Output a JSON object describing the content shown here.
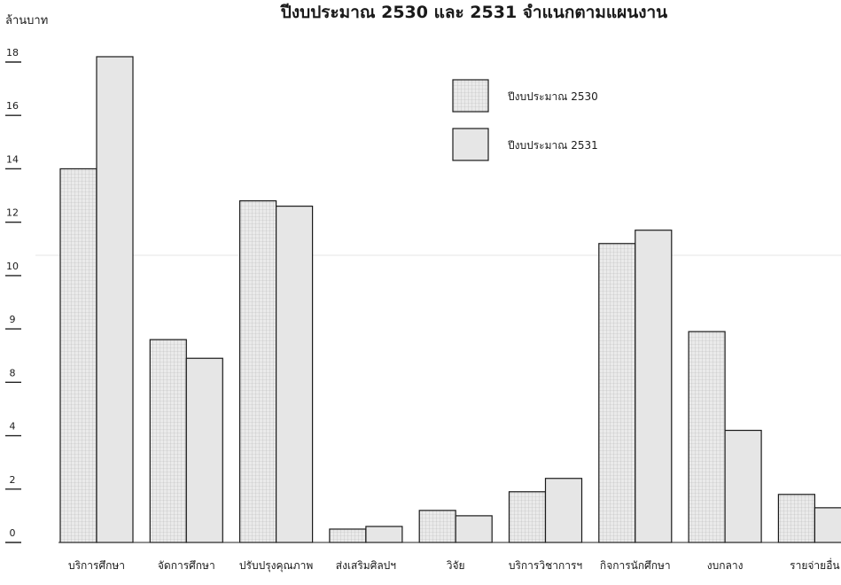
{
  "chart_data": {
    "type": "bar",
    "title": "ปีงบประมาณ 2530 และ 2531 จำแนกตามแผนงาน",
    "ylabel": "ล้านบาท",
    "xlabel": "",
    "ylim": [
      0,
      18
    ],
    "y_tick_labels": [
      "0",
      "2",
      "4",
      "8",
      "9",
      "10",
      "12",
      "14",
      "16",
      "18"
    ],
    "categories": [
      "บริการศึกษา",
      "จัดการศึกษา",
      "ปรับปรุงคุณภาพ",
      "ส่งเสริมศิลปฯ",
      "วิจัย",
      "บริการวิชาการฯ",
      "กิจการนักศึกษา",
      "งบกลาง",
      "รายจ่ายอื่น"
    ],
    "series": [
      {
        "name": "ปีงบประมาณ 2530",
        "color": "#e3e3e3",
        "pattern": "grid",
        "values": [
          14.0,
          7.6,
          12.8,
          0.5,
          1.2,
          1.9,
          11.2,
          7.9,
          1.8
        ]
      },
      {
        "name": "ปีงบประมาณ 2531",
        "color": "#e6e6e6",
        "pattern": "solid",
        "values": [
          18.2,
          6.9,
          12.6,
          0.6,
          1.0,
          2.4,
          11.7,
          4.2,
          1.3
        ]
      }
    ],
    "legend_position": "top-right",
    "grid": false
  }
}
